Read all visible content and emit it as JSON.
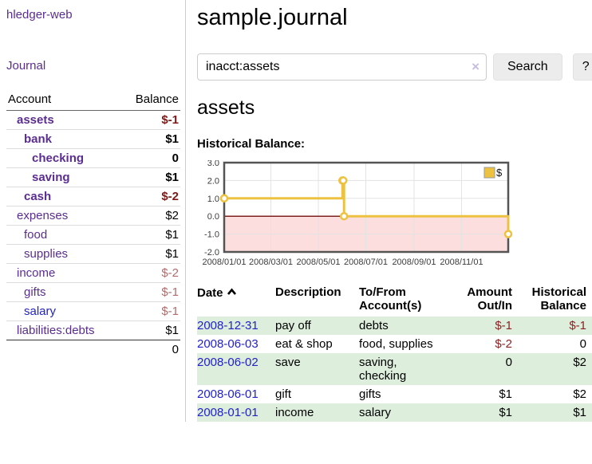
{
  "sidebar": {
    "app_title": "hledger-web",
    "nav_journal": "Journal",
    "accounts": {
      "col_account": "Account",
      "col_balance": "Balance",
      "rows": [
        {
          "name": "assets",
          "depth": 1,
          "bold": true,
          "link": "purple",
          "balance": "$-1",
          "balance_style": "neg-strong"
        },
        {
          "name": "bank",
          "depth": 2,
          "bold": true,
          "link": "purple",
          "balance": "$1",
          "balance_style": "pos-strong"
        },
        {
          "name": "checking",
          "depth": 3,
          "bold": true,
          "link": "purple",
          "balance": "0",
          "balance_style": "pos-strong"
        },
        {
          "name": "saving",
          "depth": 3,
          "bold": true,
          "link": "purple",
          "balance": "$1",
          "balance_style": "pos-strong"
        },
        {
          "name": "cash",
          "depth": 2,
          "bold": true,
          "link": "purple",
          "balance": "$-2",
          "balance_style": "neg-strong"
        },
        {
          "name": "expenses",
          "depth": 1,
          "bold": false,
          "link": "purple",
          "balance": "$2",
          "balance_style": "plain"
        },
        {
          "name": "food",
          "depth": 2,
          "bold": false,
          "link": "purple",
          "balance": "$1",
          "balance_style": "plain"
        },
        {
          "name": "supplies",
          "depth": 2,
          "bold": false,
          "link": "purple",
          "balance": "$1",
          "balance_style": "plain"
        },
        {
          "name": "income",
          "depth": 1,
          "bold": false,
          "link": "purple",
          "balance": "$-2",
          "balance_style": "neg-muted"
        },
        {
          "name": "gifts",
          "depth": 2,
          "bold": false,
          "link": "purple",
          "balance": "$-1",
          "balance_style": "neg-muted"
        },
        {
          "name": "salary",
          "depth": 2,
          "bold": false,
          "link": "blue",
          "balance": "$-1",
          "balance_style": "neg-muted"
        },
        {
          "name": "liabilities:debts",
          "depth": 1,
          "bold": false,
          "link": "purple",
          "balance": "$1",
          "balance_style": "plain"
        }
      ],
      "total": "0"
    }
  },
  "main": {
    "title": "sample.journal",
    "search": {
      "value": "inacct:assets",
      "clear_icon": "×",
      "search_button": "Search",
      "help_button": "?"
    },
    "account_heading": "assets",
    "chart_title": "Historical Balance:",
    "register": {
      "headers": {
        "date": "Date",
        "description": "Description",
        "tofrom": "To/From Account(s)",
        "amount": "Amount Out/In",
        "balance": "Historical Balance"
      },
      "rows": [
        {
          "date": "2008-12-31",
          "description": "pay off",
          "accounts": [
            "debts"
          ],
          "amount": "$-1",
          "amount_negative": true,
          "balance": "$-1",
          "balance_negative": true
        },
        {
          "date": "2008-06-03",
          "description": "eat & shop",
          "accounts": [
            "food, supplies"
          ],
          "amount": "$-2",
          "amount_negative": true,
          "balance": "0",
          "balance_negative": false
        },
        {
          "date": "2008-06-02",
          "description": "save",
          "accounts": [
            "saving,",
            "checking"
          ],
          "amount": "0",
          "amount_negative": false,
          "balance": "$2",
          "balance_negative": false
        },
        {
          "date": "2008-06-01",
          "description": "gift",
          "accounts": [
            "gifts"
          ],
          "amount": "$1",
          "amount_negative": false,
          "balance": "$2",
          "balance_negative": false
        },
        {
          "date": "2008-01-01",
          "description": "income",
          "accounts": [
            "salary"
          ],
          "amount": "$1",
          "amount_negative": false,
          "balance": "$1",
          "balance_negative": false
        }
      ]
    }
  },
  "chart_data": {
    "type": "line",
    "step": true,
    "title": "Historical Balance",
    "x_range": [
      "2008-01-01",
      "2008-12-31"
    ],
    "ylim": [
      -2,
      3
    ],
    "series": [
      {
        "name": "$",
        "color": "#EDC240",
        "points": [
          {
            "date": "2008-01-01",
            "v": 1
          },
          {
            "date": "2008-06-01",
            "v": 2
          },
          {
            "date": "2008-06-02",
            "v": 2
          },
          {
            "date": "2008-06-03",
            "v": 0
          },
          {
            "date": "2008-12-31",
            "v": -1
          }
        ]
      }
    ],
    "yticks": [
      {
        "v": 3,
        "label": "3.0"
      },
      {
        "v": 2,
        "label": "2.0"
      },
      {
        "v": 1,
        "label": "1.0"
      },
      {
        "v": 0,
        "label": "0.0"
      },
      {
        "v": -1,
        "label": "-1.0"
      },
      {
        "v": -2,
        "label": "-2.0"
      }
    ],
    "xticks": [
      {
        "date": "2008-01-01",
        "label": "2008/01/01"
      },
      {
        "date": "2008-03-01",
        "label": "2008/03/01"
      },
      {
        "date": "2008-05-01",
        "label": "2008/05/01"
      },
      {
        "date": "2008-07-01",
        "label": "2008/07/01"
      },
      {
        "date": "2008-09-01",
        "label": "2008/09/01"
      },
      {
        "date": "2008-11-01",
        "label": "2008/11/01"
      }
    ],
    "legend": {
      "position": "top-right",
      "label": "$"
    },
    "grid": true,
    "colors": {
      "negative_region": "#fcdede",
      "zero_line": "#7d2020",
      "grid": "#e3e3e3",
      "border": "#545454"
    }
  },
  "colors": {
    "link_purple": "#5b2d91",
    "link_blue": "#2222cc",
    "negative_strong": "#7d1a1a",
    "negative_muted": "#b06d6d",
    "negative_table": "#8b2323",
    "row_green": "#ddeedd",
    "series_gold": "#EDC240",
    "button_gray": "#ececec"
  }
}
